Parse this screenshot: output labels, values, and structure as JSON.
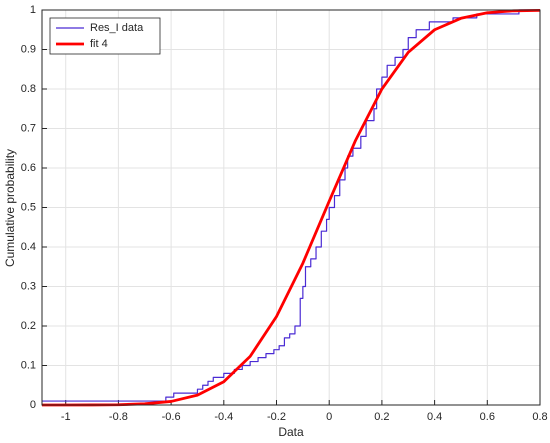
{
  "chart_data": {
    "type": "line",
    "x_label": "Data",
    "y_label": "Cumulative probability",
    "xlim": [
      -1.09,
      0.8
    ],
    "ylim": [
      0,
      1
    ],
    "xticks": [
      -1,
      -0.8,
      -0.6,
      -0.4,
      -0.2,
      0,
      0.2,
      0.4,
      0.6,
      0.8
    ],
    "yticks": [
      0,
      0.1,
      0.2,
      0.3,
      0.4,
      0.5,
      0.6,
      0.7,
      0.8,
      0.9,
      1
    ],
    "grid": true,
    "legend": "top-left",
    "series": [
      {
        "name": "Res_I data",
        "color": "#4a2bd4",
        "step": "post",
        "x": [
          -1.09,
          -0.62,
          -0.59,
          -0.5,
          -0.48,
          -0.46,
          -0.44,
          -0.4,
          -0.36,
          -0.33,
          -0.3,
          -0.27,
          -0.24,
          -0.21,
          -0.19,
          -0.17,
          -0.15,
          -0.13,
          -0.11,
          -0.1,
          -0.09,
          -0.07,
          -0.05,
          -0.03,
          -0.01,
          0.0,
          0.02,
          0.04,
          0.06,
          0.07,
          0.09,
          0.12,
          0.14,
          0.17,
          0.18,
          0.2,
          0.22,
          0.25,
          0.28,
          0.3,
          0.33,
          0.38,
          0.47,
          0.56,
          0.72,
          0.8
        ],
        "values": [
          0.01,
          0.02,
          0.03,
          0.04,
          0.05,
          0.06,
          0.07,
          0.08,
          0.09,
          0.1,
          0.11,
          0.12,
          0.13,
          0.14,
          0.15,
          0.17,
          0.18,
          0.2,
          0.27,
          0.3,
          0.35,
          0.37,
          0.4,
          0.44,
          0.47,
          0.5,
          0.53,
          0.57,
          0.6,
          0.63,
          0.65,
          0.68,
          0.72,
          0.75,
          0.8,
          0.83,
          0.86,
          0.88,
          0.9,
          0.93,
          0.95,
          0.97,
          0.98,
          0.99,
          1.0,
          1.0
        ]
      },
      {
        "name": "fit 4",
        "color": "#ff0000",
        "x": [
          -1.09,
          -1.0,
          -0.9,
          -0.8,
          -0.7,
          -0.6,
          -0.5,
          -0.4,
          -0.3,
          -0.2,
          -0.1,
          0.0,
          0.1,
          0.2,
          0.3,
          0.4,
          0.5,
          0.6,
          0.7,
          0.8
        ],
        "values": [
          0.0,
          0.0,
          0.0002,
          0.0006,
          0.003,
          0.009,
          0.025,
          0.059,
          0.123,
          0.224,
          0.359,
          0.516,
          0.67,
          0.8,
          0.893,
          0.95,
          0.979,
          0.993,
          0.998,
          0.999
        ]
      }
    ]
  }
}
